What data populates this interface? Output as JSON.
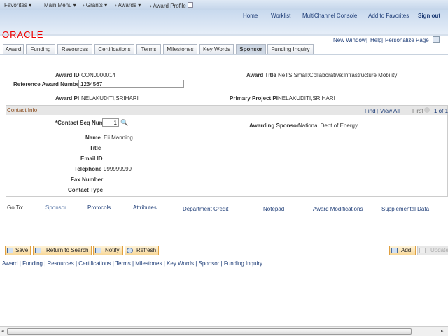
{
  "nav": {
    "favorites": "Favorites",
    "main_menu": "Main Menu",
    "crumbs": [
      "Grants",
      "Awards",
      "Award Profile"
    ]
  },
  "header": {
    "links": [
      "Home",
      "Worklist",
      "MultiChannel Console",
      "Add to Favorites",
      "Sign out"
    ],
    "logo": "ORACLE"
  },
  "page_links": {
    "new_window": "New Window",
    "help": "Help",
    "personalize": "Personalize Page"
  },
  "tabs": [
    "Award",
    "Funding",
    "Resources",
    "Certifications",
    "Terms",
    "Milestones",
    "Key Words",
    "Sponsor",
    "Funding Inquiry"
  ],
  "active_tab": "Sponsor",
  "award": {
    "award_id_label": "Award ID",
    "award_id": "CON0000014",
    "ref_label": "Reference Award Number",
    "ref_value": "1234567",
    "title_label": "Award Title",
    "title": "NeTS:Small:Collaborative:Infrastructure Mobility",
    "pi_label": "Award PI",
    "pi": "NELAKUDITI,SRIHARI",
    "ppi_label": "Primary Project PI",
    "ppi": "NELAKUDITI,SRIHARI"
  },
  "contact": {
    "header": "Contact Info",
    "find": "Find",
    "view_all": "View All",
    "first": "First",
    "count": "1 of 1",
    "seq_label": "*Contact Seq Num",
    "seq_value": "1",
    "sponsor_label": "Awarding Sponsor",
    "sponsor": "National Dept of Energy",
    "name_label": "Name",
    "name": "Eli Manning",
    "title_label": "Title",
    "email_label": "Email ID",
    "tel_label": "Telephone",
    "tel": "999999999",
    "fax_label": "Fax Number",
    "type_label": "Contact Type"
  },
  "goto": {
    "label": "Go To:",
    "links": [
      "Sponsor",
      "Protocols",
      "Attributes",
      "Department Credit",
      "Notepad",
      "Award Modifications",
      "Supplemental Data"
    ]
  },
  "buttons": {
    "save": "Save",
    "return": "Return to Search",
    "notify": "Notify",
    "refresh": "Refresh",
    "add": "Add",
    "update": "Update/Display"
  },
  "bottom_links": [
    "Award",
    "Funding",
    "Resources",
    "Certifications",
    "Terms",
    "Milestones",
    "Key Words",
    "Sponsor",
    "Funding Inquiry"
  ]
}
